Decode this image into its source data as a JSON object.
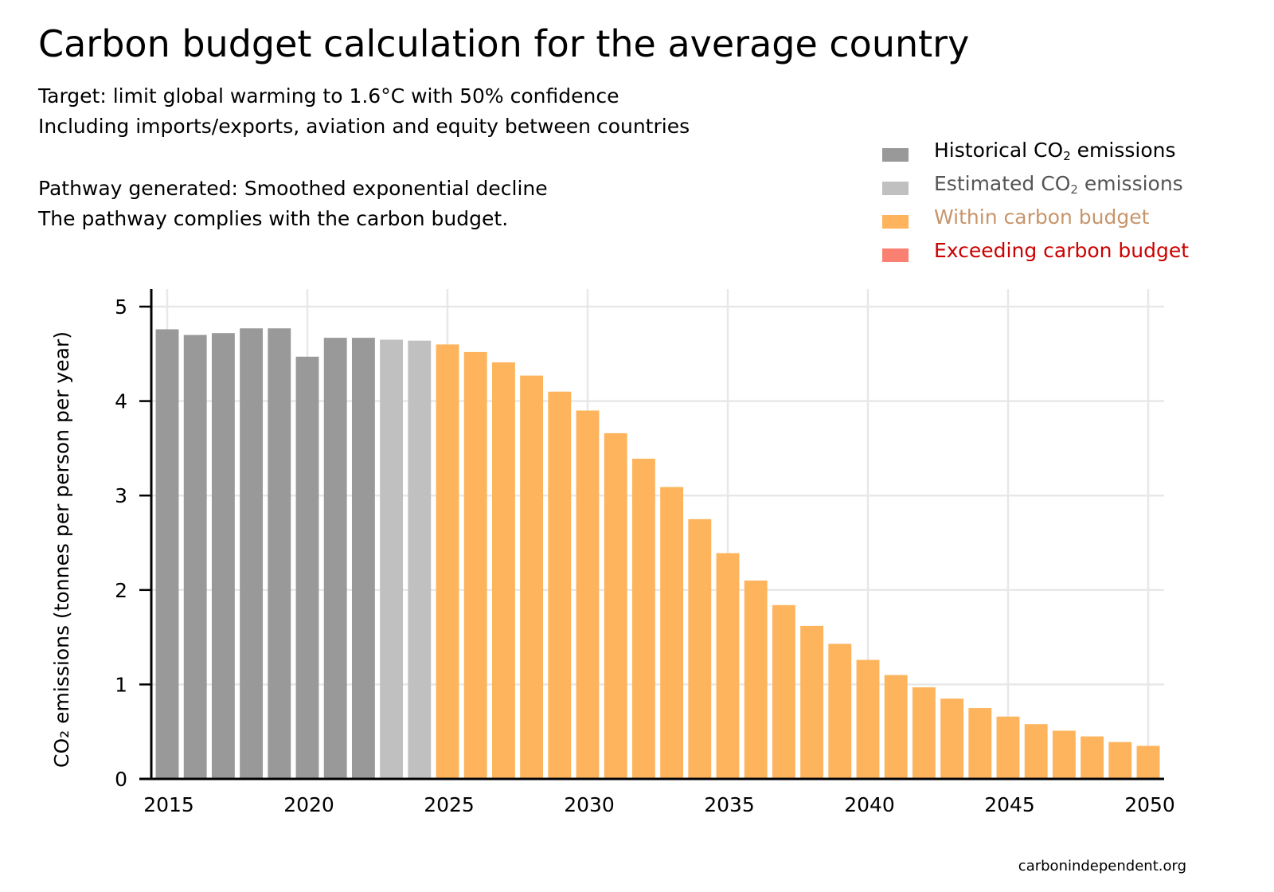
{
  "header": {
    "title": "Carbon budget calculation for the average country",
    "subtitle_1": "Target: limit global warming to 1.6°C with 50% confidence",
    "subtitle_2": "Including imports/exports, aviation and equity between countries",
    "pathway_line": "Pathway generated: Smoothed exponential decline",
    "compliance_line": "The pathway complies with the carbon budget."
  },
  "legend": [
    {
      "label_pre": "Historical CO",
      "label_sub": "2",
      "label_post": " emissions",
      "color": "#999999",
      "text_color": "#000000"
    },
    {
      "label_pre": "Estimated CO",
      "label_sub": "2",
      "label_post": " emissions",
      "color": "#c0c0c0",
      "text_color": "#555555"
    },
    {
      "label_pre": "Within carbon budget",
      "label_sub": "",
      "label_post": "",
      "color": "#fdb45c",
      "text_color": "#c8956a"
    },
    {
      "label_pre": "Exceeding carbon budget",
      "label_sub": "",
      "label_post": "",
      "color": "#fa8072",
      "text_color": "#cc0000"
    }
  ],
  "source": "carbonindependent.org",
  "colors": {
    "historical": "#999999",
    "estimated": "#c0c0c0",
    "within": "#fdb45c",
    "grid": "#e8e8e8",
    "axis": "#000000"
  },
  "chart_data": {
    "type": "bar",
    "ylabel": "CO₂ emissions (tonnes per person per year)",
    "ylim": [
      0,
      5.2
    ],
    "yticks": [
      0,
      1,
      2,
      3,
      4,
      5
    ],
    "xticks": [
      2015,
      2020,
      2025,
      2030,
      2035,
      2040,
      2045,
      2050
    ],
    "grid": true,
    "legend_position": "top-right",
    "x": [
      2015,
      2016,
      2017,
      2018,
      2019,
      2020,
      2021,
      2022,
      2023,
      2024,
      2025,
      2026,
      2027,
      2028,
      2029,
      2030,
      2031,
      2032,
      2033,
      2034,
      2035,
      2036,
      2037,
      2038,
      2039,
      2040,
      2041,
      2042,
      2043,
      2044,
      2045,
      2046,
      2047,
      2048,
      2049,
      2050
    ],
    "values": [
      4.76,
      4.7,
      4.72,
      4.77,
      4.77,
      4.47,
      4.67,
      4.67,
      4.65,
      4.64,
      4.6,
      4.52,
      4.41,
      4.27,
      4.1,
      3.9,
      3.66,
      3.39,
      3.09,
      2.75,
      2.39,
      2.1,
      1.84,
      1.62,
      1.43,
      1.26,
      1.1,
      0.97,
      0.85,
      0.75,
      0.66,
      0.58,
      0.51,
      0.45,
      0.39,
      0.35
    ],
    "categories": [
      "historical",
      "historical",
      "historical",
      "historical",
      "historical",
      "historical",
      "historical",
      "historical",
      "estimated",
      "estimated",
      "within",
      "within",
      "within",
      "within",
      "within",
      "within",
      "within",
      "within",
      "within",
      "within",
      "within",
      "within",
      "within",
      "within",
      "within",
      "within",
      "within",
      "within",
      "within",
      "within",
      "within",
      "within",
      "within",
      "within",
      "within",
      "within"
    ]
  }
}
